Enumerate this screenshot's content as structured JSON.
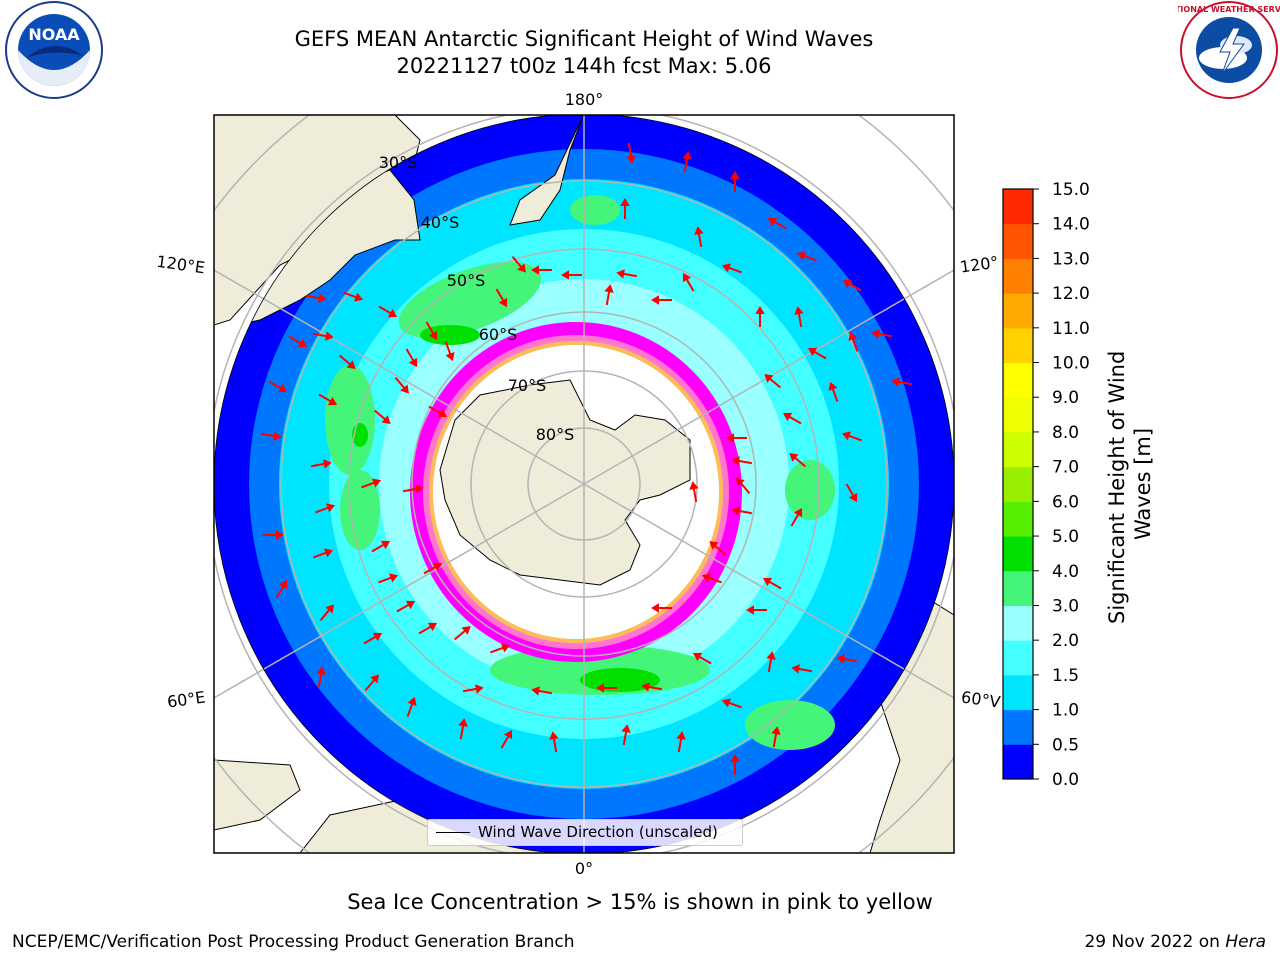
{
  "title": {
    "line1": "GEFS MEAN Antarctic Significant Height of Wind Waves",
    "line2": "20221127 t00z 144h fcst   Max: 5.06"
  },
  "logos": {
    "noaa": "NOAA",
    "nws_ring": "NATIONAL WEATHER SERVICE"
  },
  "map": {
    "projection": "south-polar-stereographic",
    "longitude_labels": {
      "top": "180°",
      "bottom": "0°",
      "left_upper": "120°E",
      "left_lower": "60°E",
      "right_upper": "120°",
      "right_lower": "60°V"
    },
    "latitude_labels": [
      "30°S",
      "40°S",
      "50°S",
      "60°S",
      "70°S",
      "80°S"
    ],
    "colors": {
      "land": "#efedd9",
      "ice_shelf": "#ffffff",
      "grid": "#b4b4b4",
      "arrow": "#ff0000",
      "sea_ice": [
        "#ff00ff",
        "#ff77cc",
        "#ffbb55"
      ]
    }
  },
  "colorbar": {
    "label_line1": "Significant Height of Wind",
    "label_line2": "Waves [m]",
    "ticks": [
      "0.0",
      "0.5",
      "1.0",
      "1.5",
      "2.0",
      "3.0",
      "4.0",
      "5.0",
      "6.0",
      "7.0",
      "8.0",
      "9.0",
      "10.0",
      "11.0",
      "12.0",
      "13.0",
      "14.0",
      "15.0"
    ],
    "colors": [
      "#0000ff",
      "#0077ff",
      "#00e5ff",
      "#44ffff",
      "#99ffff",
      "#44f57a",
      "#00e000",
      "#55ee00",
      "#99ee00",
      "#ccff00",
      "#eeff00",
      "#ffff00",
      "#ffd200",
      "#ffaa00",
      "#ff7f00",
      "#ff5500",
      "#ff2a00",
      "#ff0000"
    ]
  },
  "legend": {
    "label": "Wind Wave Direction (unscaled)"
  },
  "note": "Sea Ice Concentration > 15% is shown in pink to yellow",
  "footer": {
    "left": "NCEP/EMC/Verification Post Processing Product Generation Branch",
    "date": "29 Nov 2022 on ",
    "host": "Hera"
  }
}
